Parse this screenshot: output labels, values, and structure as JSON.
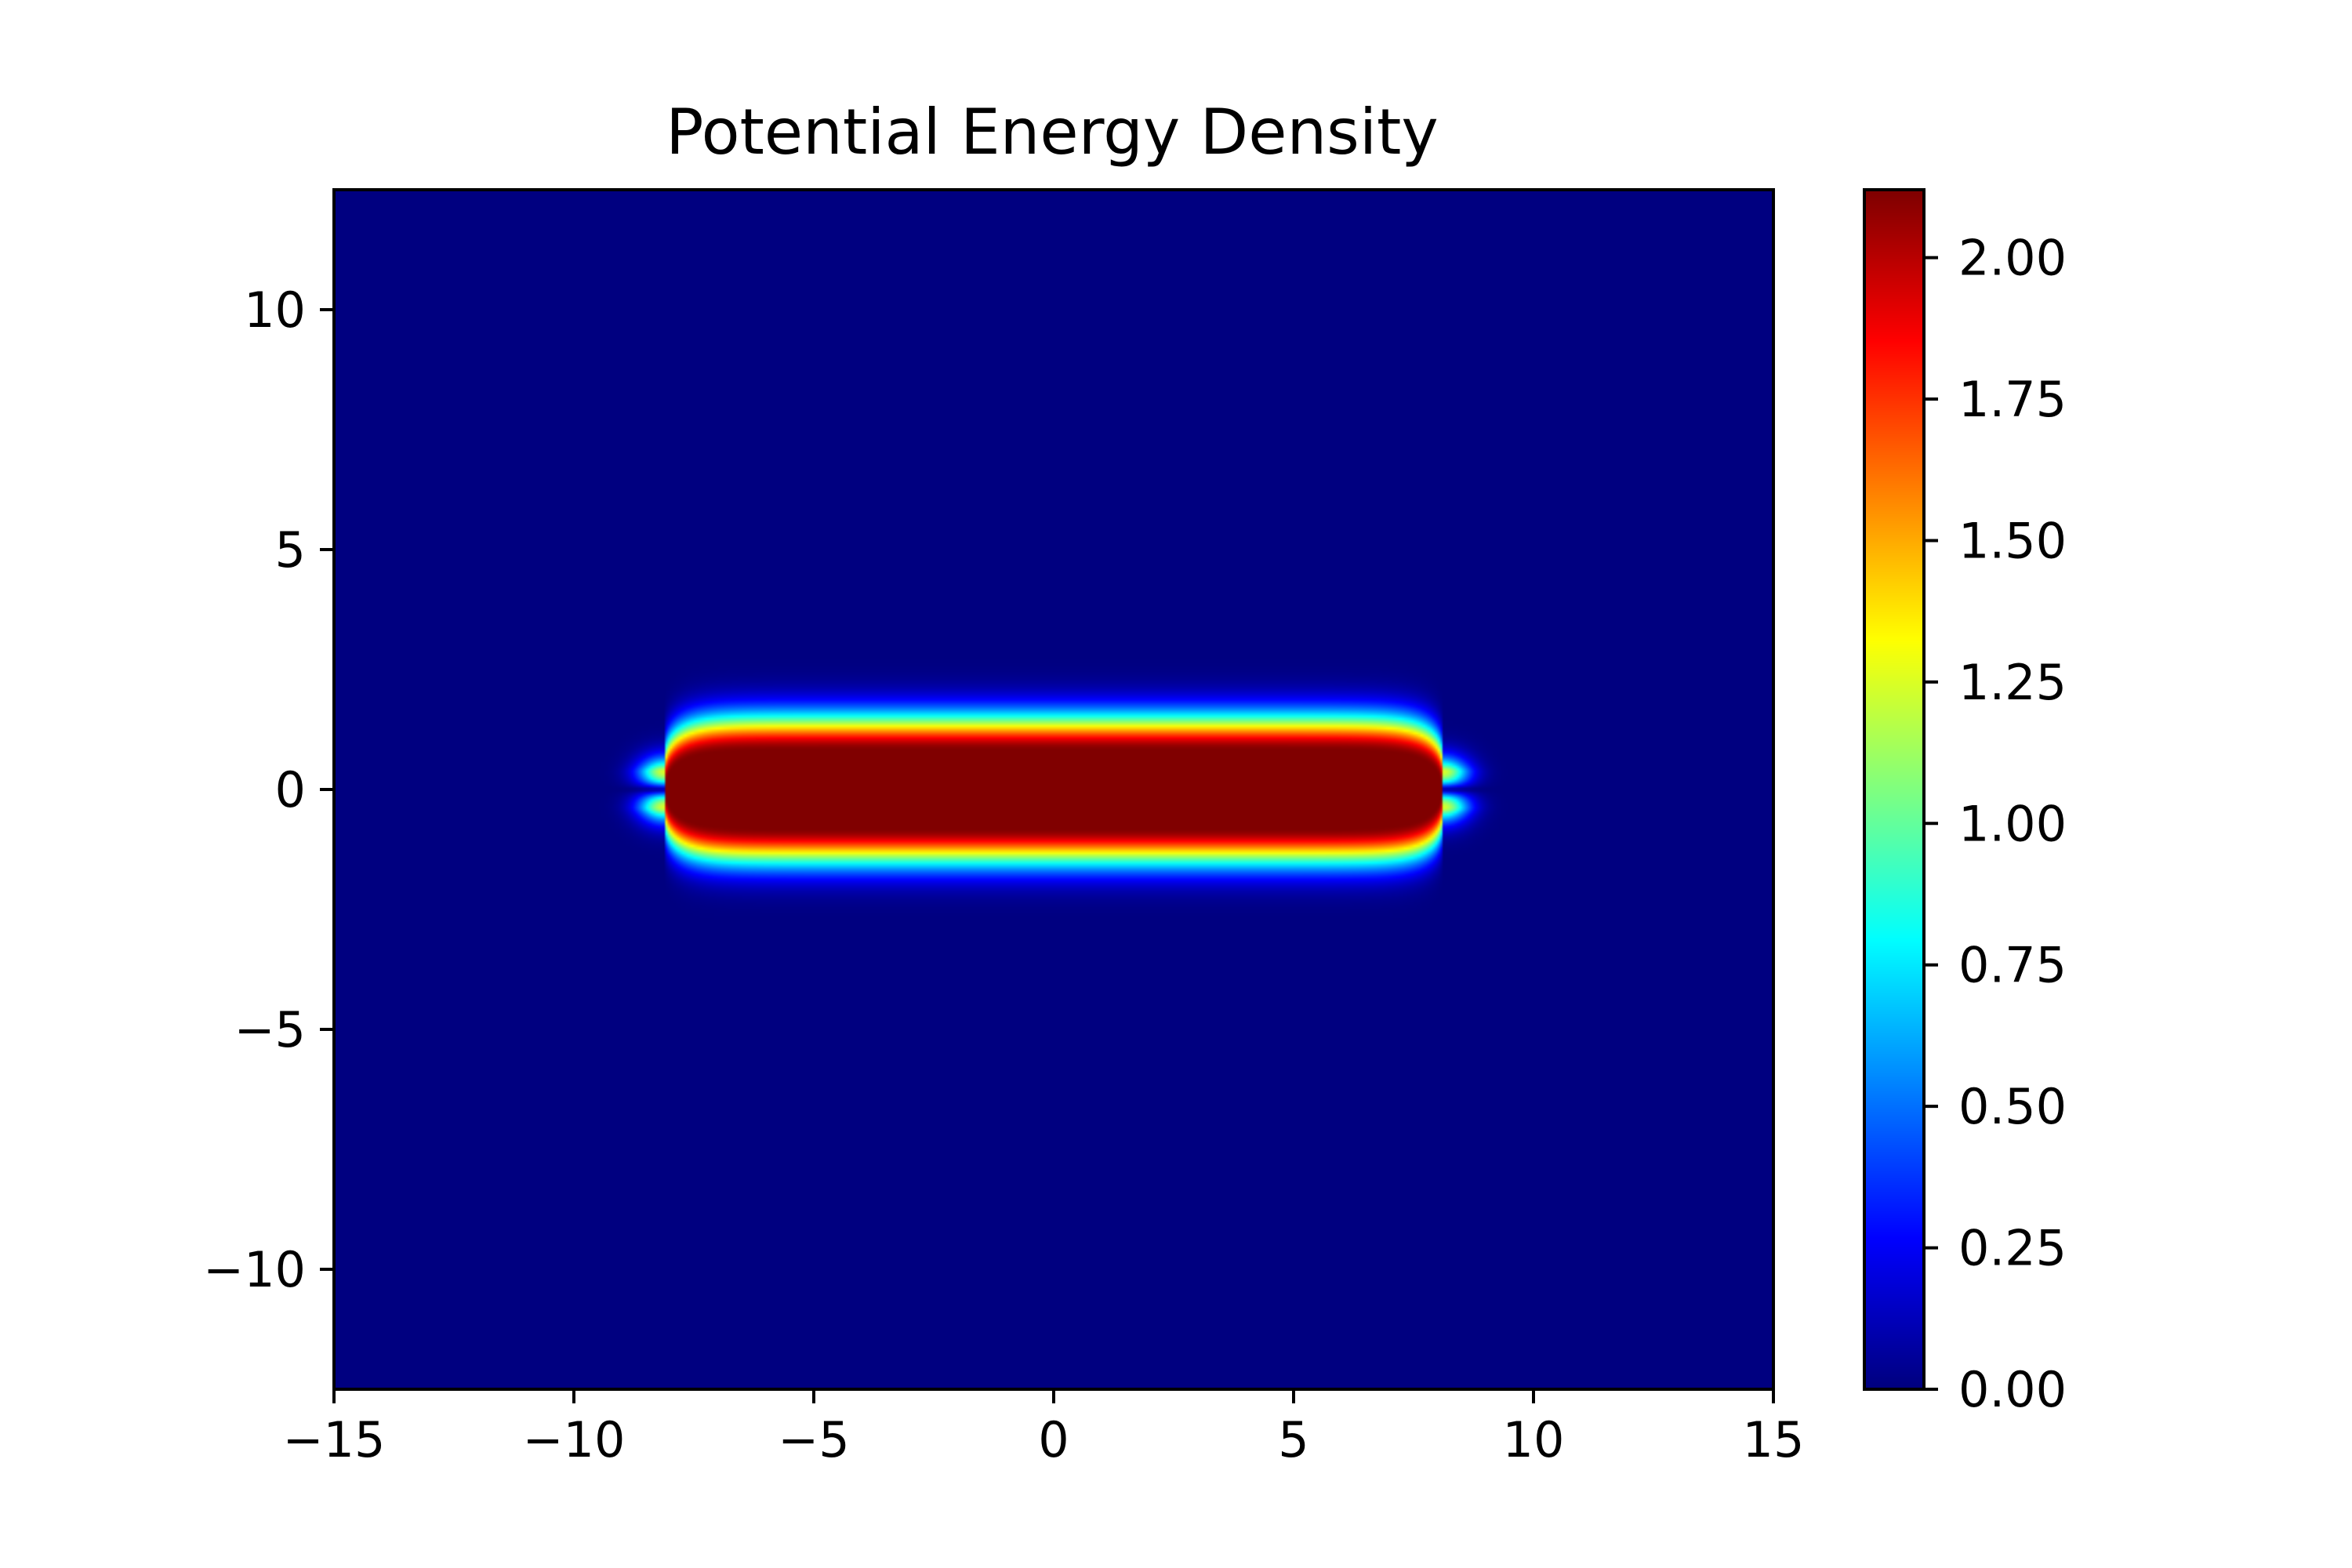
{
  "chart_data": {
    "type": "heatmap",
    "title": "Potential Energy Density",
    "xlabel": "",
    "ylabel": "",
    "xlim": [
      -15,
      15
    ],
    "ylim": [
      -12.5,
      12.5
    ],
    "x_ticks": [
      -15,
      -10,
      -5,
      0,
      5,
      10,
      15
    ],
    "x_tick_labels": [
      "−15",
      "−10",
      "−5",
      "0",
      "5",
      "10",
      "15"
    ],
    "y_ticks": [
      -10,
      -5,
      0,
      5,
      10
    ],
    "y_tick_labels": [
      "−10",
      "−5",
      "0",
      "5",
      "10"
    ],
    "colormap": "jet",
    "colorbar": {
      "vmin": 0.0,
      "vmax": 2.12,
      "ticks": [
        0.0,
        0.25,
        0.5,
        0.75,
        1.0,
        1.25,
        1.5,
        1.75,
        2.0
      ],
      "tick_labels": [
        "0.00",
        "0.25",
        "0.50",
        "0.75",
        "1.00",
        "1.25",
        "1.50",
        "1.75",
        "2.00"
      ]
    },
    "field": {
      "description_shape": "elongated horizontal lobe",
      "center": [
        0,
        0
      ],
      "x_extent": [
        -8.1,
        8.1
      ],
      "core_half_thickness": 0.8,
      "peak_value": 2.12,
      "background_value": 0.0
    },
    "grid": false
  },
  "colors": {
    "frame": "#000000",
    "background": "#ffffff"
  }
}
